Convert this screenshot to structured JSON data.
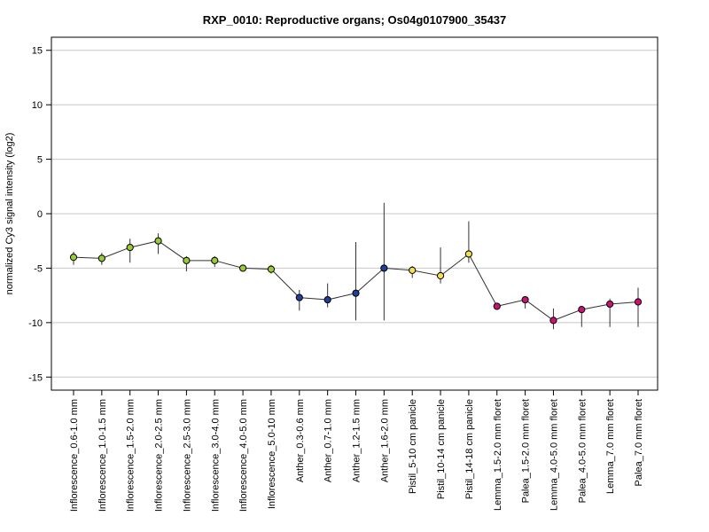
{
  "chart_data": {
    "type": "scatter",
    "title": "RXP_0010: Reproductive organs; Os04g0107900_35437",
    "ylabel": "normalized Cy3 signal intensity (log2)",
    "xlabel": "",
    "ylim": [
      -16.2,
      16.2
    ],
    "yticks": [
      -15,
      -10,
      -5,
      0,
      5,
      10,
      15
    ],
    "ytick_labels": [
      "-15",
      "-10",
      "-5",
      "0",
      "5",
      "10",
      "15"
    ],
    "grid": "horizontal",
    "categories": [
      "Inflorescence_0.6-1.0 mm",
      "Inflorescence_1.0-1.5 mm",
      "Inflorescence_1.5-2.0 mm",
      "Inflorescence_2.0-2.5 mm",
      "Inflorescence_2.5-3.0 mm",
      "Inflorescence_3.0-4.0 mm",
      "Inflorescence_4.0-5.0 mm",
      "Inflorescence_5.0-10 mm",
      "Anther_0.3-0.6 mm",
      "Anther_0.7-1.0 mm",
      "Anther_1.2-1.5 mm",
      "Anther_1.6-2.0 mm",
      "Pistil_5-10 cm panicle",
      "Pistil_10-14 cm panicle",
      "Pistil_14-18 cm panicle",
      "Lemma_1.5-2.0 mm floret",
      "Palea_1.5-2.0 mm floret",
      "Lemma_4.0-5.0 mm floret",
      "Palea_4.0-5.0 mm floret",
      "Lemma_7.0 mm floret",
      "Palea_7.0 mm floret"
    ],
    "values": [
      -4.0,
      -4.1,
      -3.1,
      -2.5,
      -4.3,
      -4.3,
      -5.0,
      -5.1,
      -7.7,
      -7.9,
      -7.3,
      -5.0,
      -5.2,
      -5.7,
      -3.7,
      -8.5,
      -7.9,
      -9.8,
      -8.8,
      -8.3,
      -8.1
    ],
    "err_low": [
      -4.7,
      -4.7,
      -4.5,
      -3.7,
      -5.3,
      -4.9,
      -5.3,
      -5.5,
      -8.9,
      -8.6,
      -9.8,
      -9.8,
      -5.9,
      -6.4,
      -4.5,
      -8.5,
      -8.7,
      -10.6,
      -10.4,
      -10.4,
      -10.4
    ],
    "err_high": [
      -3.5,
      -3.6,
      -2.3,
      -1.8,
      -3.9,
      -3.9,
      -4.7,
      -4.7,
      -7.0,
      -6.4,
      -2.6,
      1.0,
      -4.8,
      -3.1,
      -0.7,
      -8.3,
      -7.8,
      -8.7,
      -8.5,
      -7.8,
      -6.8
    ],
    "point_colors": [
      "#99cc33",
      "#99cc33",
      "#99cc33",
      "#99cc33",
      "#99cc33",
      "#99cc33",
      "#99cc33",
      "#99cc33",
      "#1f3f99",
      "#1f3f99",
      "#1f3f99",
      "#1f3f99",
      "#f2e04d",
      "#f2e04d",
      "#f2e04d",
      "#cc1177",
      "#cc1177",
      "#cc1177",
      "#cc1177",
      "#cc1177",
      "#cc1177"
    ],
    "line_color": "#333333",
    "grid_color": "#c8c8c8"
  }
}
